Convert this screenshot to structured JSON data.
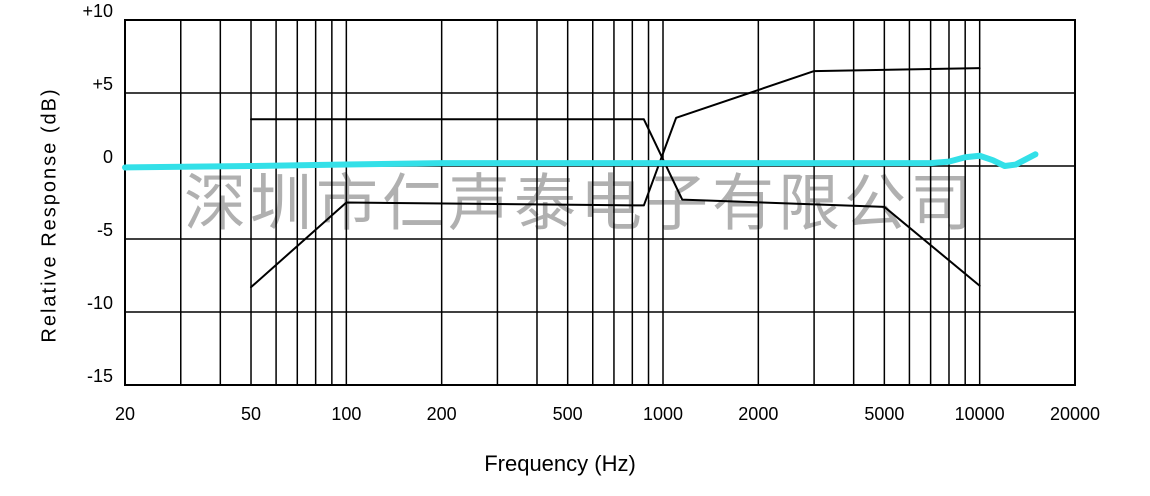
{
  "chart_data": {
    "type": "line",
    "x_label": "Frequency (Hz)",
    "y_label": "Relative Response (dB)",
    "watermark": "深圳市仁声泰电子有限公司",
    "xscale": "log",
    "xlim": [
      20,
      20000
    ],
    "xticks": [
      20,
      50,
      100,
      200,
      500,
      1000,
      2000,
      5000,
      10000,
      20000
    ],
    "xminorticks": [
      30,
      40,
      60,
      70,
      80,
      90,
      300,
      400,
      600,
      700,
      800,
      900,
      3000,
      4000,
      6000,
      7000,
      8000,
      9000
    ],
    "ylim": [
      -15,
      10
    ],
    "yticks": [
      {
        "value": 10,
        "label": "+10"
      },
      {
        "value": 5,
        "label": "+5"
      },
      0,
      -5,
      -10,
      -15
    ],
    "grid": true,
    "series": [
      {
        "color": "#000000",
        "x": [
          50,
          870,
          1150,
          5000,
          10000
        ],
        "values": [
          3.2,
          3.2,
          -2.3,
          -2.8,
          -8.2
        ]
      },
      {
        "color": "#000000",
        "x": [
          50,
          100,
          870,
          1100,
          3000,
          10000
        ],
        "values": [
          -8.3,
          -2.5,
          -2.7,
          3.3,
          6.5,
          6.7
        ]
      },
      {
        "color": "#33e0e8",
        "x": [
          20,
          50,
          100,
          200,
          500,
          1000,
          2000,
          5000,
          7000,
          8000,
          9000,
          10000,
          11000,
          12000,
          13000,
          15000
        ],
        "values": [
          -0.1,
          0,
          0.1,
          0.2,
          0.2,
          0.2,
          0.2,
          0.2,
          0.2,
          0.3,
          0.6,
          0.7,
          0.4,
          0,
          0.1,
          0.8
        ]
      }
    ]
  }
}
